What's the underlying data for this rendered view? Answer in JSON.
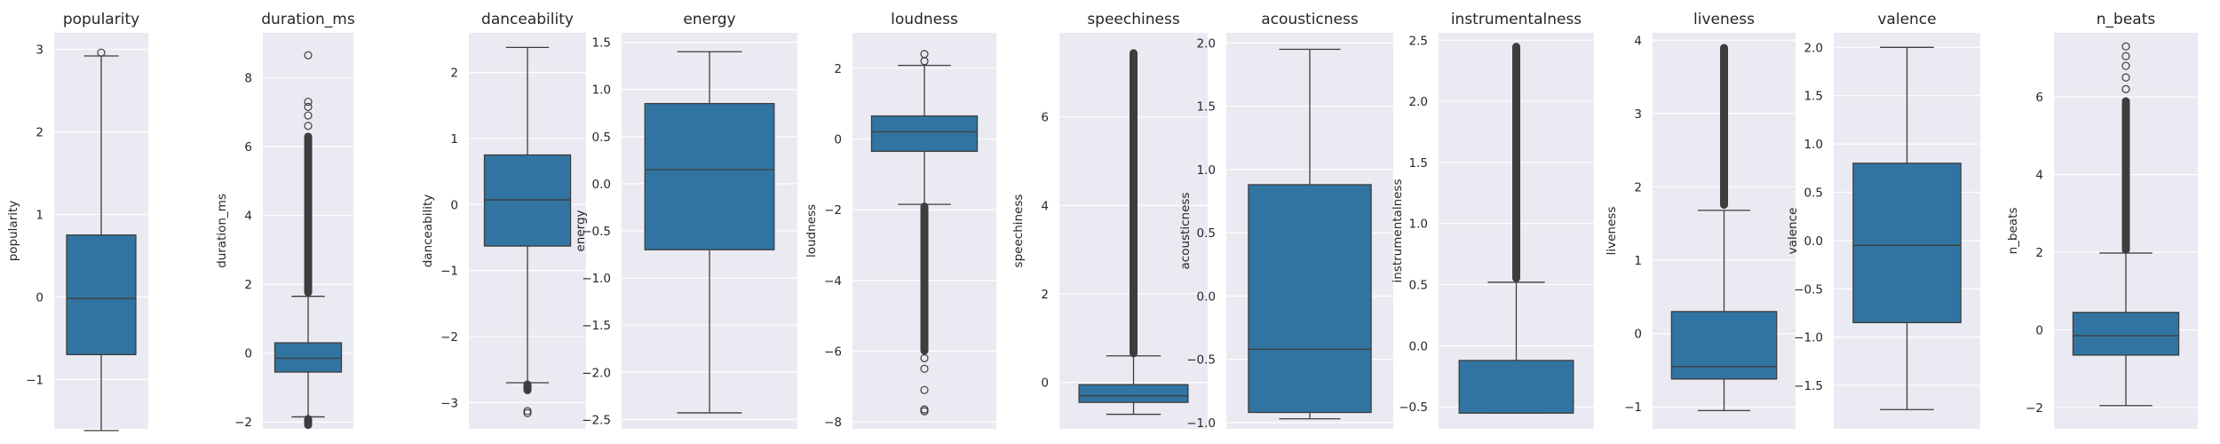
{
  "figure": {
    "colors": {
      "box_fill": "#3274a1",
      "line": "#3d3d3d",
      "axes_bg": "#eaeaf2",
      "grid": "#ffffff",
      "text": "#262626"
    }
  },
  "chart_data": [
    {
      "type": "box",
      "title": "popularity",
      "ylabel": "popularity",
      "ylim": [
        -1.6,
        3.2
      ],
      "yticks": [
        -1,
        0,
        1,
        2,
        3
      ],
      "tick_labels": [
        "−1",
        "0",
        "1",
        "2",
        "3"
      ],
      "grid": true,
      "whisker_low": -1.62,
      "q1": -0.7,
      "median": -0.02,
      "q3": 0.75,
      "whisker_high": 2.92,
      "outliers": [
        2.96
      ]
    },
    {
      "type": "box",
      "title": "duration_ms",
      "ylabel": "duration_ms",
      "ylim": [
        -2.2,
        9.3
      ],
      "yticks": [
        -2,
        0,
        2,
        4,
        6,
        8
      ],
      "tick_labels": [
        "−2",
        "0",
        "2",
        "4",
        "6",
        "8"
      ],
      "grid": true,
      "whisker_low": -1.85,
      "q1": -0.55,
      "median": -0.15,
      "q3": 0.3,
      "whisker_high": 1.65,
      "outlier_band_high": [
        1.75,
        6.3
      ],
      "outlier_band_low": [
        -1.9,
        -2.1
      ],
      "outliers": [
        6.6,
        6.9,
        7.15,
        7.3,
        8.65
      ]
    },
    {
      "type": "box",
      "title": "danceability",
      "ylabel": "danceability",
      "ylim": [
        -3.4,
        2.6
      ],
      "yticks": [
        -3,
        -2,
        -1,
        0,
        1,
        2
      ],
      "tick_labels": [
        "−3",
        "−2",
        "−1",
        "0",
        "1",
        "2"
      ],
      "grid": true,
      "whisker_low": -2.7,
      "q1": -0.63,
      "median": 0.07,
      "q3": 0.75,
      "whisker_high": 2.38,
      "outlier_band_low": [
        -2.72,
        -2.82
      ],
      "outliers": [
        -3.13,
        -3.16
      ]
    },
    {
      "type": "box",
      "title": "energy",
      "ylabel": "energy",
      "ylim": [
        -2.6,
        1.6
      ],
      "yticks": [
        -2.5,
        -2.0,
        -1.5,
        -1.0,
        -0.5,
        0.0,
        0.5,
        1.0,
        1.5
      ],
      "tick_labels": [
        "−2.5",
        "−2.0",
        "−1.5",
        "−1.0",
        "−0.5",
        "0.0",
        "0.5",
        "1.0",
        "1.5"
      ],
      "grid": true,
      "whisker_low": -2.43,
      "q1": -0.7,
      "median": 0.15,
      "q3": 0.85,
      "whisker_high": 1.4,
      "outliers": []
    },
    {
      "type": "box",
      "title": "loudness",
      "ylabel": "loudness",
      "ylim": [
        -8.2,
        3.0
      ],
      "yticks": [
        -8,
        -6,
        -4,
        -2,
        0,
        2
      ],
      "tick_labels": [
        "−8",
        "−6",
        "−4",
        "−2",
        "0",
        "2"
      ],
      "grid": true,
      "whisker_low": -1.85,
      "q1": -0.35,
      "median": 0.2,
      "q3": 0.65,
      "whisker_high": 2.08,
      "outlier_band_low": [
        -1.9,
        -6.0
      ],
      "outliers": [
        2.2,
        2.4,
        -6.2,
        -6.5,
        -7.1,
        -7.65,
        -7.7
      ]
    },
    {
      "type": "box",
      "title": "speechiness",
      "ylabel": "speechiness",
      "ylim": [
        -1.05,
        7.9
      ],
      "yticks": [
        0,
        2,
        4,
        6
      ],
      "tick_labels": [
        "0",
        "2",
        "4",
        "6"
      ],
      "grid": true,
      "whisker_low": -0.72,
      "q1": -0.45,
      "median": -0.3,
      "q3": -0.05,
      "whisker_high": 0.6,
      "outlier_band_high": [
        0.65,
        7.45
      ],
      "outliers": []
    },
    {
      "type": "box",
      "title": "acousticness",
      "ylabel": "acousticness",
      "ylim": [
        -1.05,
        2.08
      ],
      "yticks": [
        -1.0,
        -0.5,
        0.0,
        0.5,
        1.0,
        1.5,
        2.0
      ],
      "tick_labels": [
        "−1.0",
        "−0.5",
        "0.0",
        "0.5",
        "1.0",
        "1.5",
        "2.0"
      ],
      "grid": true,
      "whisker_low": -0.97,
      "q1": -0.92,
      "median": -0.42,
      "q3": 0.88,
      "whisker_high": 1.95,
      "outliers": []
    },
    {
      "type": "box",
      "title": "instrumentalness",
      "ylabel": "instrumentalness",
      "ylim": [
        -0.68,
        2.56
      ],
      "yticks": [
        -0.5,
        0.0,
        0.5,
        1.0,
        1.5,
        2.0,
        2.5
      ],
      "tick_labels": [
        "−0.5",
        "0.0",
        "0.5",
        "1.0",
        "1.5",
        "2.0",
        "2.5"
      ],
      "grid": true,
      "whisker_low": -0.55,
      "q1": -0.55,
      "median": -0.55,
      "q3": -0.12,
      "whisker_high": 0.52,
      "outlier_band_high": [
        0.55,
        2.45
      ],
      "outliers": []
    },
    {
      "type": "box",
      "title": "liveness",
      "ylabel": "liveness",
      "ylim": [
        -1.3,
        4.1
      ],
      "yticks": [
        -1,
        0,
        1,
        2,
        3,
        4
      ],
      "tick_labels": [
        "−1",
        "0",
        "1",
        "2",
        "3",
        "4"
      ],
      "grid": true,
      "whisker_low": -1.05,
      "q1": -0.62,
      "median": -0.45,
      "q3": 0.3,
      "whisker_high": 1.68,
      "outlier_band_high": [
        1.75,
        3.9
      ],
      "outliers": []
    },
    {
      "type": "box",
      "title": "valence",
      "ylabel": "valence",
      "ylim": [
        -1.95,
        2.15
      ],
      "yticks": [
        -1.5,
        -1.0,
        -0.5,
        0.0,
        0.5,
        1.0,
        1.5,
        2.0
      ],
      "tick_labels": [
        "−1.5",
        "−1.0",
        "−0.5",
        "0.0",
        "0.5",
        "1.0",
        "1.5",
        "2.0"
      ],
      "grid": true,
      "whisker_low": -1.75,
      "q1": -0.85,
      "median": -0.05,
      "q3": 0.8,
      "whisker_high": 2.0,
      "outliers": []
    },
    {
      "type": "box",
      "title": "n_beats",
      "ylabel": "n_beats",
      "ylim": [
        -2.55,
        7.65
      ],
      "yticks": [
        -2,
        0,
        2,
        4,
        6
      ],
      "tick_labels": [
        "−2",
        "0",
        "2",
        "4",
        "6"
      ],
      "grid": true,
      "whisker_low": -1.95,
      "q1": -0.65,
      "median": -0.15,
      "q3": 0.45,
      "whisker_high": 1.98,
      "outlier_band_high": [
        2.05,
        5.9
      ],
      "outliers": [
        6.2,
        6.5,
        6.8,
        7.05,
        7.3
      ]
    }
  ]
}
